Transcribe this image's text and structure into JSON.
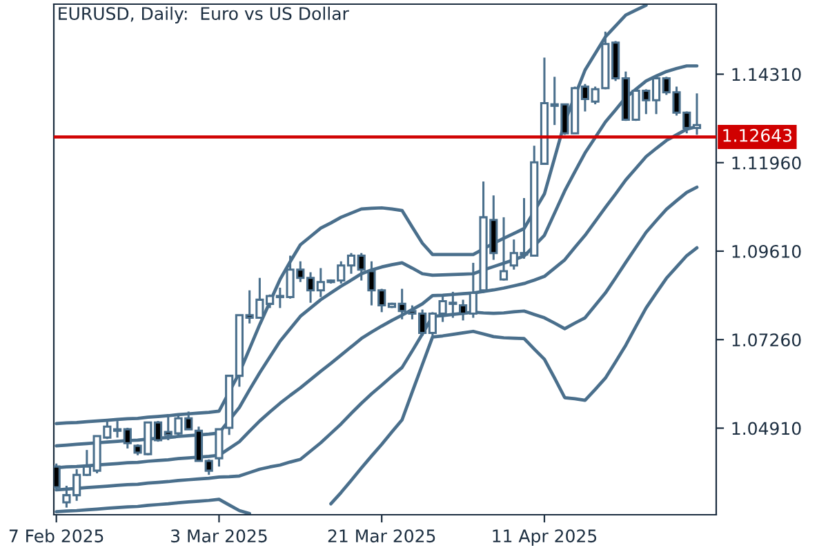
{
  "chart_data": {
    "type": "candlestick",
    "title": "EURUSD, Daily:  Euro vs US Dollar",
    "categories": [
      "7 Feb 2025",
      null,
      null,
      null,
      null,
      null,
      null,
      null,
      null,
      null,
      null,
      null,
      null,
      null,
      null,
      null,
      "3 Mar 2025",
      null,
      null,
      null,
      null,
      null,
      null,
      null,
      null,
      null,
      null,
      null,
      null,
      null,
      null,
      null,
      "21 Mar 2025",
      null,
      null,
      null,
      null,
      null,
      null,
      null,
      null,
      null,
      null,
      null,
      null,
      null,
      null,
      null,
      "11 Apr 2025",
      null,
      null,
      null,
      null,
      null,
      null,
      null,
      null,
      null,
      null,
      null,
      null,
      null,
      null,
      null
    ],
    "color": "#4a6f8c",
    "ohlc": [
      [
        1.0389,
        1.0397,
        1.0327,
        1.0334
      ],
      [
        1.0294,
        1.0338,
        1.028,
        1.0313
      ],
      [
        1.0313,
        1.0382,
        1.0298,
        1.0367
      ],
      [
        1.0367,
        1.0433,
        1.0364,
        1.0389
      ],
      [
        1.0378,
        1.047,
        1.0371,
        1.047
      ],
      [
        1.0466,
        1.0514,
        1.0462,
        1.0495
      ],
      [
        1.0484,
        1.051,
        1.0466,
        1.0488
      ],
      [
        1.0488,
        1.0492,
        1.0437,
        1.0451
      ],
      [
        1.0444,
        1.0448,
        1.0419,
        1.0426
      ],
      [
        1.0422,
        1.0506,
        1.0419,
        1.0506
      ],
      [
        1.0506,
        1.051,
        1.0455,
        1.0459
      ],
      [
        1.0481,
        1.0528,
        1.0459,
        1.0473
      ],
      [
        1.0477,
        1.0528,
        1.047,
        1.0517
      ],
      [
        1.0517,
        1.0535,
        1.0488,
        1.0488
      ],
      [
        1.0484,
        1.0495,
        1.0404,
        1.0404
      ],
      [
        1.0404,
        1.0408,
        1.0367,
        1.0378
      ],
      [
        1.0411,
        1.0488,
        1.0389,
        1.0488
      ],
      [
        1.0492,
        1.063,
        1.0473,
        1.063
      ],
      [
        1.063,
        1.0791,
        1.0601,
        1.0791
      ],
      [
        1.0791,
        1.0857,
        1.0769,
        1.0784
      ],
      [
        1.0784,
        1.089,
        1.0784,
        1.0832
      ],
      [
        1.0821,
        1.0846,
        1.081,
        1.0842
      ],
      [
        1.0839,
        1.0864,
        1.081,
        1.0842
      ],
      [
        1.0839,
        1.0949,
        1.0835,
        1.0912
      ],
      [
        1.0912,
        1.0934,
        1.0879,
        1.089
      ],
      [
        1.089,
        1.0905,
        1.0824,
        1.0857
      ],
      [
        1.0857,
        1.0916,
        1.0839,
        1.0879
      ],
      [
        1.0879,
        1.0886,
        1.0875,
        1.0883
      ],
      [
        1.0883,
        1.0934,
        1.0875,
        1.0923
      ],
      [
        1.0923,
        1.0956,
        1.0901,
        1.0949
      ],
      [
        1.0949,
        1.0956,
        1.0883,
        1.0912
      ],
      [
        1.0908,
        1.0934,
        1.0817,
        1.0857
      ],
      [
        1.0857,
        1.0861,
        1.0799,
        1.0817
      ],
      [
        1.0813,
        1.0824,
        1.081,
        1.0821
      ],
      [
        1.0821,
        1.0861,
        1.078,
        1.0802
      ],
      [
        1.0802,
        1.0817,
        1.078,
        1.0795
      ],
      [
        1.0795,
        1.0806,
        1.0736,
        1.0744
      ],
      [
        1.0744,
        1.0799,
        1.0736,
        1.0795
      ],
      [
        1.0795,
        1.0846,
        1.0773,
        1.0828
      ],
      [
        1.0824,
        1.0853,
        1.0784,
        1.0821
      ],
      [
        1.0817,
        1.0832,
        1.0777,
        1.0795
      ],
      [
        1.0795,
        1.093,
        1.0784,
        1.085
      ],
      [
        1.0857,
        1.1146,
        1.085,
        1.1051
      ],
      [
        1.1044,
        1.1109,
        1.0938,
        1.0956
      ],
      [
        1.0886,
        1.1051,
        1.0883,
        1.0908
      ],
      [
        1.0923,
        1.0992,
        1.0912,
        1.0956
      ],
      [
        1.0956,
        1.1102,
        1.0941,
        1.0952
      ],
      [
        1.0949,
        1.1241,
        1.0949,
        1.1197
      ],
      [
        1.1193,
        1.1475,
        1.1193,
        1.1354
      ],
      [
        1.1347,
        1.1424,
        1.1296,
        1.1351
      ],
      [
        1.1351,
        1.1351,
        1.127,
        1.1274
      ],
      [
        1.1274,
        1.1398,
        1.1274,
        1.1394
      ],
      [
        1.1398,
        1.1405,
        1.1332,
        1.1365
      ],
      [
        1.1358,
        1.1398,
        1.1351,
        1.1391
      ],
      [
        1.1394,
        1.1544,
        1.1391,
        1.1511
      ],
      [
        1.1515,
        1.1519,
        1.1413,
        1.142
      ],
      [
        1.142,
        1.1438,
        1.1307,
        1.131
      ],
      [
        1.131,
        1.1394,
        1.1307,
        1.1387
      ],
      [
        1.1387,
        1.1391,
        1.1325,
        1.1362
      ],
      [
        1.1362,
        1.1424,
        1.1325,
        1.142
      ],
      [
        1.142,
        1.1424,
        1.1376,
        1.1383
      ],
      [
        1.1383,
        1.1398,
        1.1321,
        1.1329
      ],
      [
        1.1329,
        1.1332,
        1.1274,
        1.1288
      ],
      [
        1.1288,
        1.138,
        1.127,
        1.1296
      ]
    ],
    "colors": [
      "#000000",
      "#ffffff",
      "#ffffff",
      "#ffffff",
      "#ffffff",
      "#ffffff",
      "#ffffff",
      "#000000",
      "#000000",
      "#ffffff",
      "#000000",
      "#000000",
      "#ffffff",
      "#000000",
      "#000000",
      "#000000",
      "#ffffff",
      "#ffffff",
      "#ffffff",
      "#000000",
      "#ffffff",
      "#ffffff",
      "#ffffff",
      "#ffffff",
      "#000000",
      "#000000",
      "#ffffff",
      "#ffffff",
      "#ffffff",
      "#ffffff",
      "#000000",
      "#000000",
      "#000000",
      "#ffffff",
      "#000000",
      "#000000",
      "#000000",
      "#ffffff",
      "#ffffff",
      "#000000",
      "#000000",
      "#ffffff",
      "#ffffff",
      "#000000",
      "#ffffff",
      "#ffffff",
      "#000000",
      "#ffffff",
      "#ffffff",
      "#ffffff",
      "#000000",
      "#ffffff",
      "#000000",
      "#ffffff",
      "#ffffff",
      "#000000",
      "#000000",
      "#ffffff",
      "#000000",
      "#ffffff",
      "#000000",
      "#000000",
      "#000000",
      "#ffffff"
    ],
    "series": [
      {
        "type": "line",
        "color": "#4a6f8c",
        "values": [
          1.0503,
          1.0505,
          1.0506,
          1.0508,
          1.051,
          1.0512,
          1.0514,
          1.0516,
          1.0517,
          1.052,
          1.0522,
          1.0524,
          1.0527,
          1.0529,
          1.0531,
          1.0533,
          1.0536,
          1.0587,
          1.0638,
          1.0702,
          1.0766,
          1.0826,
          1.0886,
          1.0933,
          1.0978,
          1.1,
          1.1022,
          1.1036,
          1.1051,
          1.1062,
          1.1073,
          1.1075,
          1.1076,
          1.1073,
          1.1069,
          1.1025,
          1.0982,
          1.0952,
          1.0952,
          1.0952,
          1.0952,
          1.0952,
          1.0967,
          1.0982,
          1.0995,
          1.1008,
          1.1021,
          1.1067,
          1.1113,
          1.1208,
          1.1304,
          1.1373,
          1.1442,
          1.1486,
          1.153,
          1.1559,
          1.1588,
          1.1601,
          1.1614,
          null,
          null,
          null,
          null,
          null
        ]
      },
      {
        "type": "line",
        "color": "#4a6f8c",
        "values": [
          1.0444,
          1.0446,
          1.0448,
          1.045,
          1.0452,
          1.0454,
          1.0456,
          1.0458,
          1.0459,
          1.0462,
          1.0464,
          1.0466,
          1.0469,
          1.0471,
          1.0473,
          1.0475,
          1.0478,
          1.0512,
          1.0546,
          1.0593,
          1.0638,
          1.068,
          1.0722,
          1.0755,
          1.0788,
          1.081,
          1.0832,
          1.085,
          1.0868,
          1.0884,
          1.0901,
          1.0911,
          1.0919,
          1.0925,
          1.093,
          1.0916,
          1.0901,
          1.0897,
          1.0898,
          1.0899,
          1.09,
          1.0901,
          1.0911,
          1.092,
          1.0929,
          1.0938,
          1.0948,
          1.0975,
          1.1003,
          1.1062,
          1.1121,
          1.1172,
          1.1222,
          1.1263,
          1.1304,
          1.1336,
          1.1369,
          1.1391,
          1.1413,
          1.1426,
          1.1438,
          1.1446,
          1.1453,
          1.1453
        ]
      },
      {
        "type": "line",
        "color": "#4a6f8c",
        "values": [
          1.0386,
          1.0388,
          1.0389,
          1.0391,
          1.0393,
          1.0395,
          1.0397,
          1.0399,
          1.04,
          1.0403,
          1.0405,
          1.0407,
          1.041,
          1.0412,
          1.0414,
          1.0416,
          1.0419,
          1.0437,
          1.0455,
          1.0483,
          1.051,
          1.0534,
          1.0557,
          1.0578,
          1.0598,
          1.062,
          1.0642,
          1.0663,
          1.0685,
          1.0707,
          1.0729,
          1.0746,
          1.0762,
          1.0777,
          1.0791,
          1.0806,
          1.0821,
          1.0843,
          1.0844,
          1.0846,
          1.0848,
          1.085,
          1.0854,
          1.0858,
          1.0863,
          1.0869,
          1.0875,
          1.0884,
          1.0894,
          1.0916,
          1.0938,
          1.0971,
          1.1003,
          1.104,
          1.1077,
          1.1113,
          1.115,
          1.1181,
          1.1212,
          1.1234,
          1.1255,
          1.127,
          1.1285,
          1.1292
        ]
      },
      {
        "type": "line",
        "color": "#4a6f8c",
        "values": [
          1.0327,
          1.0329,
          1.0331,
          1.0333,
          1.0335,
          1.0337,
          1.0339,
          1.0341,
          1.0342,
          1.0345,
          1.0347,
          1.0349,
          1.0352,
          1.0354,
          1.0356,
          1.0358,
          1.0361,
          1.0362,
          1.0364,
          1.0373,
          1.0382,
          1.0388,
          1.0393,
          1.0401,
          1.0408,
          1.043,
          1.0452,
          1.0477,
          1.0502,
          1.053,
          1.0557,
          1.0582,
          1.0605,
          1.0629,
          1.0652,
          1.0696,
          1.0741,
          1.0788,
          1.079,
          1.0793,
          1.0796,
          1.0799,
          1.0797,
          1.0796,
          1.0797,
          1.08,
          1.0802,
          1.0793,
          1.0784,
          1.077,
          1.0755,
          1.077,
          1.0784,
          1.0817,
          1.085,
          1.089,
          1.0931,
          1.0971,
          1.1011,
          1.1042,
          1.1072,
          1.1095,
          1.1117,
          1.1131
        ]
      },
      {
        "type": "line",
        "color": "#4a6f8c",
        "values": [
          1.0269,
          1.0271,
          1.0272,
          1.0274,
          1.0276,
          1.0278,
          1.028,
          1.0282,
          1.0283,
          1.0286,
          1.0288,
          1.029,
          1.0293,
          1.0295,
          1.0297,
          1.0299,
          1.0302,
          1.0287,
          1.0272,
          1.0264,
          null,
          null,
          null,
          null,
          null,
          null,
          null,
          1.029,
          1.032,
          1.0352,
          1.0385,
          1.0417,
          1.0448,
          1.0481,
          1.0513,
          1.0587,
          1.066,
          1.0733,
          1.0736,
          1.074,
          1.0744,
          1.0748,
          1.0741,
          1.0734,
          1.0731,
          1.073,
          1.0729,
          1.0701,
          1.0674,
          1.0624,
          1.0572,
          1.0569,
          1.0565,
          1.0594,
          1.0624,
          1.0667,
          1.0711,
          1.0761,
          1.081,
          1.085,
          1.0889,
          1.0919,
          1.0949,
          1.097
        ]
      }
    ],
    "ylim": [
      1.0261,
      1.1617
    ],
    "yticks": [
      {
        "value": 1.0491,
        "label": "1.04910"
      },
      {
        "value": 1.0726,
        "label": "1.07260"
      },
      {
        "value": 1.0961,
        "label": "1.09610"
      },
      {
        "value": 1.1196,
        "label": "1.11960"
      },
      {
        "value": 1.1431,
        "label": "1.14310"
      }
    ],
    "ref_lines": [
      {
        "axis": "y",
        "value": 1.12643,
        "label": "1.12643",
        "color": "#d00000"
      }
    ]
  }
}
